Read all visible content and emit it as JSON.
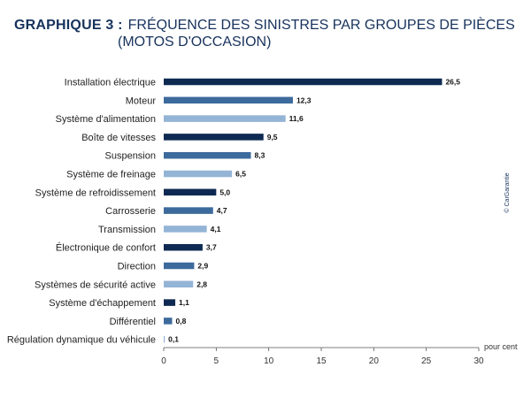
{
  "title": {
    "prefix": "GRAPHIQUE  3 :",
    "line1": "FRÉQUENCE DES SINISTRES PAR GROUPES DE PIÈCES",
    "line2": "(MOTOS D'OCCASION)"
  },
  "copyright": "© CarGarantie",
  "chart_data": {
    "type": "bar",
    "orientation": "horizontal",
    "categories": [
      "Installation électrique",
      "Moteur",
      "Système d'alimentation",
      "Boîte de vitesses",
      "Suspension",
      "Système de freinage",
      "Système de refroidissement",
      "Carrosserie",
      "Transmission",
      "Électronique de confort",
      "Direction",
      "Systèmes de sécurité active",
      "Système d'échappement",
      "Différentiel",
      "Régulation dynamique du véhicule"
    ],
    "values": [
      26.5,
      12.3,
      11.6,
      9.5,
      8.3,
      6.5,
      5.0,
      4.7,
      4.1,
      3.7,
      2.9,
      2.8,
      1.1,
      0.8,
      0.1
    ],
    "value_labels": [
      "26,5",
      "12,3",
      "11,6",
      "9,5",
      "8,3",
      "6,5",
      "5,0",
      "4,7",
      "4,1",
      "3,7",
      "2,9",
      "2,8",
      "1,1",
      "0,8",
      "0,1"
    ],
    "xlim": [
      0,
      30
    ],
    "xticks": [
      0,
      5,
      10,
      15,
      20,
      25,
      30
    ],
    "xlabel": "pour cent",
    "colors": [
      "#0e2a52",
      "#3d6a9c",
      "#94b4d6"
    ],
    "grid": false
  }
}
